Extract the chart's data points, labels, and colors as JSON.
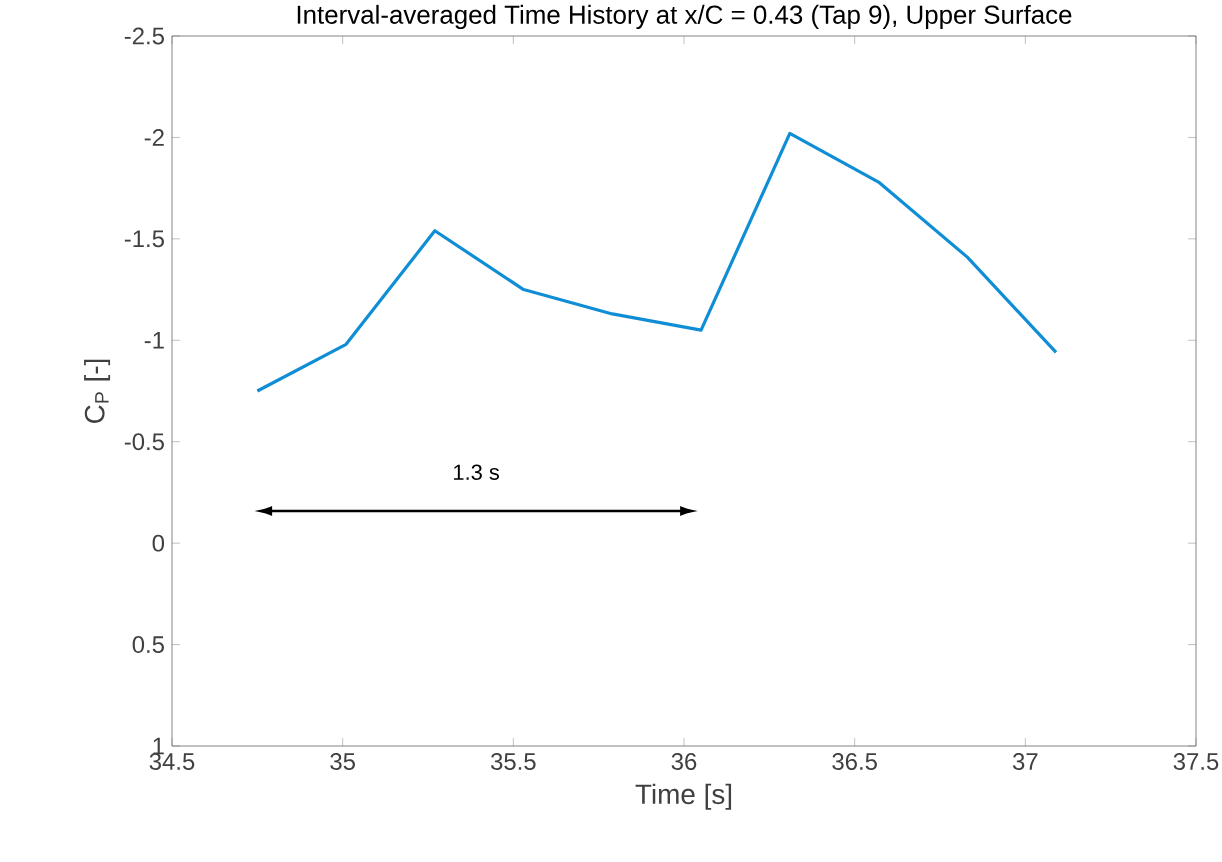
{
  "chart_data": {
    "type": "line",
    "title": "Interval-averaged Time History at x/C = 0.43 (Tap 9), Upper Surface",
    "xlabel": "Time [s]",
    "ylabel": "C$_{P}$ [-]",
    "xlim": [
      34.5,
      37.5
    ],
    "xticks": [
      34.5,
      35,
      35.5,
      36,
      36.5,
      37,
      37.5
    ],
    "ylim": [
      1,
      -2.5
    ],
    "yticks": [
      -2.5,
      -2,
      -1.5,
      -1,
      -0.5,
      0,
      0.5,
      1
    ],
    "grid": false,
    "marker": "none",
    "line_style": "solid",
    "series": [
      {
        "color": "#0f8ed6",
        "x": [
          34.75,
          35.01,
          35.27,
          35.53,
          35.79,
          36.05,
          36.31,
          36.57,
          36.83,
          37.09
        ],
        "values": [
          -0.75,
          -0.98,
          -1.54,
          -1.25,
          -1.13,
          -1.05,
          -2.02,
          -1.78,
          -1.41,
          -0.94
        ]
      }
    ],
    "annotations": [
      "1.3 s"
    ]
  }
}
